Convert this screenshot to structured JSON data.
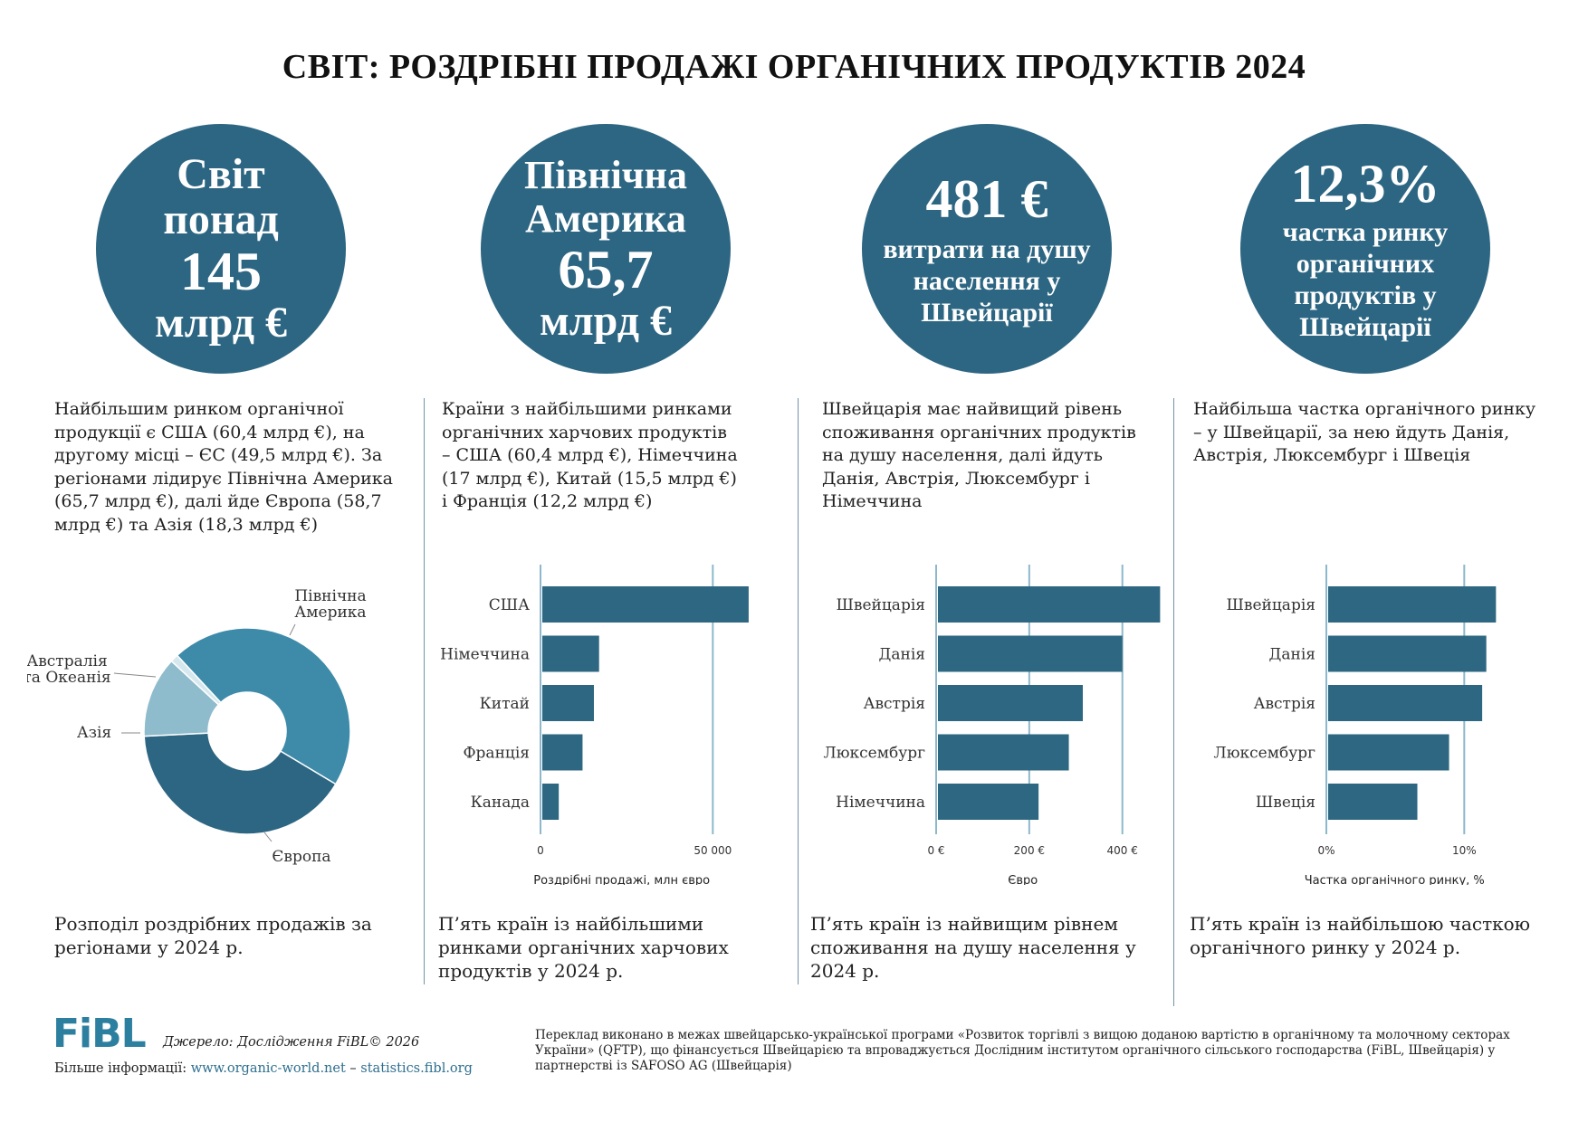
{
  "title": "СВІТ: РОЗДРІБНІ ПРОДАЖІ ОРГАНІЧНИХ ПРОДУКТІВ 2024",
  "colors": {
    "circle": "#2d6682",
    "bar": "#2e6781",
    "pie_north_america": "#3d8aa9",
    "pie_europe": "#2d6682",
    "pie_asia": "#8fbccd",
    "pie_oceania": "#d6e8ee",
    "gridline": "#8db8cc"
  },
  "circles": [
    {
      "lines": [
        "Світ",
        "понад",
        "145",
        "млрд €"
      ]
    },
    {
      "lines": [
        "Північна",
        "Америка",
        "65,7",
        "млрд €"
      ]
    },
    {
      "lines": [
        "481 €",
        "витрати на душу",
        "населення у",
        "Швейцарії"
      ]
    },
    {
      "lines": [
        "12,3%",
        "частка ринку",
        "органічних",
        "продуктів у",
        "Швейцарії"
      ]
    }
  ],
  "descriptions": [
    "Найбільшим ринком органічної продукції є США (60,4 млрд €), на другому місці – ЄС (49,5 млрд €). За регіонами лідирує Північна Америка (65,7 млрд €), далі йде Європа (58,7 млрд €) та Азія (18,3 млрд €)",
    "Країни з найбільшими ринками органічних харчових продуктів – США (60,4 млрд €), Німеччина (17 млрд €), Китай (15,5 млрд €) і Франція (12,2 млрд €)",
    "Швейцарія має найвищий рівень споживання органічних продуктів на душу населення, далі йдуть Данія, Австрія, Люксембург і Німеччина",
    "Найбільша частка органічного ринку – у Швейцарії, за нею йдуть Данія, Австрія, Люксембург і Швеція"
  ],
  "captions": [
    "Розподіл роздрібних продажів за регіонами у 2024 р.",
    "П’ять країн із найбільшими ринками органічних харчових продуктів у 2024 р.",
    "П’ять країн із найвищим рівнем споживання на душу населення у 2024 р.",
    "П’ять країн із найбільшою часткою органічного ринку у 2024 р."
  ],
  "chart_data": [
    {
      "type": "pie",
      "title": "Розподіл роздрібних продажів за регіонами у 2024 р.",
      "categories": [
        "Північна Америка",
        "Європа",
        "Азія",
        "Австралія та Океанія"
      ],
      "labels_display": [
        "Північна\nАмерика",
        "Європа",
        "Азія",
        "Австралія\nта Океанія"
      ],
      "values": [
        65.7,
        58.7,
        18.3,
        1.8
      ],
      "unit": "млрд €"
    },
    {
      "type": "bar",
      "orientation": "horizontal",
      "categories": [
        "США",
        "Німеччина",
        "Китай",
        "Франція",
        "Канада"
      ],
      "values": [
        60400,
        17000,
        15500,
        12200,
        5300
      ],
      "xlim": [
        0,
        62000
      ],
      "ticks": [
        0,
        50000
      ],
      "tick_labels": [
        "0",
        "50 000"
      ],
      "xlabel": "Роздрібні продажі, млн євро"
    },
    {
      "type": "bar",
      "orientation": "horizontal",
      "categories": [
        "Швейцарія",
        "Данія",
        "Австрія",
        "Люксембург",
        "Німеччина"
      ],
      "values": [
        481,
        400,
        315,
        285,
        220
      ],
      "xlim": [
        0,
        490
      ],
      "ticks": [
        0,
        200,
        400
      ],
      "tick_labels": [
        "0 €",
        "200 €",
        "400 €"
      ],
      "xlabel": "Євро"
    },
    {
      "type": "bar",
      "orientation": "horizontal",
      "categories": [
        "Швейцарія",
        "Данія",
        "Австрія",
        "Люксембург",
        "Швеція"
      ],
      "values": [
        12.3,
        11.6,
        11.3,
        8.9,
        6.6
      ],
      "xlim": [
        0,
        13
      ],
      "ticks": [
        0,
        10
      ],
      "tick_labels": [
        "0%",
        "10%"
      ],
      "xlabel": "Частка органічного ринку, %"
    }
  ],
  "footer": {
    "logo": "FiBL",
    "source": "Джерело: Дослідження FiBL© 2026",
    "more_info_label": "Більше інформації:",
    "link1": "www.organic-world.net",
    "separator": "–",
    "link2": "statistics.fibl.org",
    "translation_note": "Переклад виконано в межах швейцарсько-української програми «Розвиток торгівлі з вищою доданою вартістю в органічному та молочному секторах України» (QFTP), що фінансується Швейцарією та впроваджується Дослідним інститутом органічного сільського господарства (FiBL, Швейцарія) у партнерстві із SAFOSO AG (Швейцарія)"
  }
}
